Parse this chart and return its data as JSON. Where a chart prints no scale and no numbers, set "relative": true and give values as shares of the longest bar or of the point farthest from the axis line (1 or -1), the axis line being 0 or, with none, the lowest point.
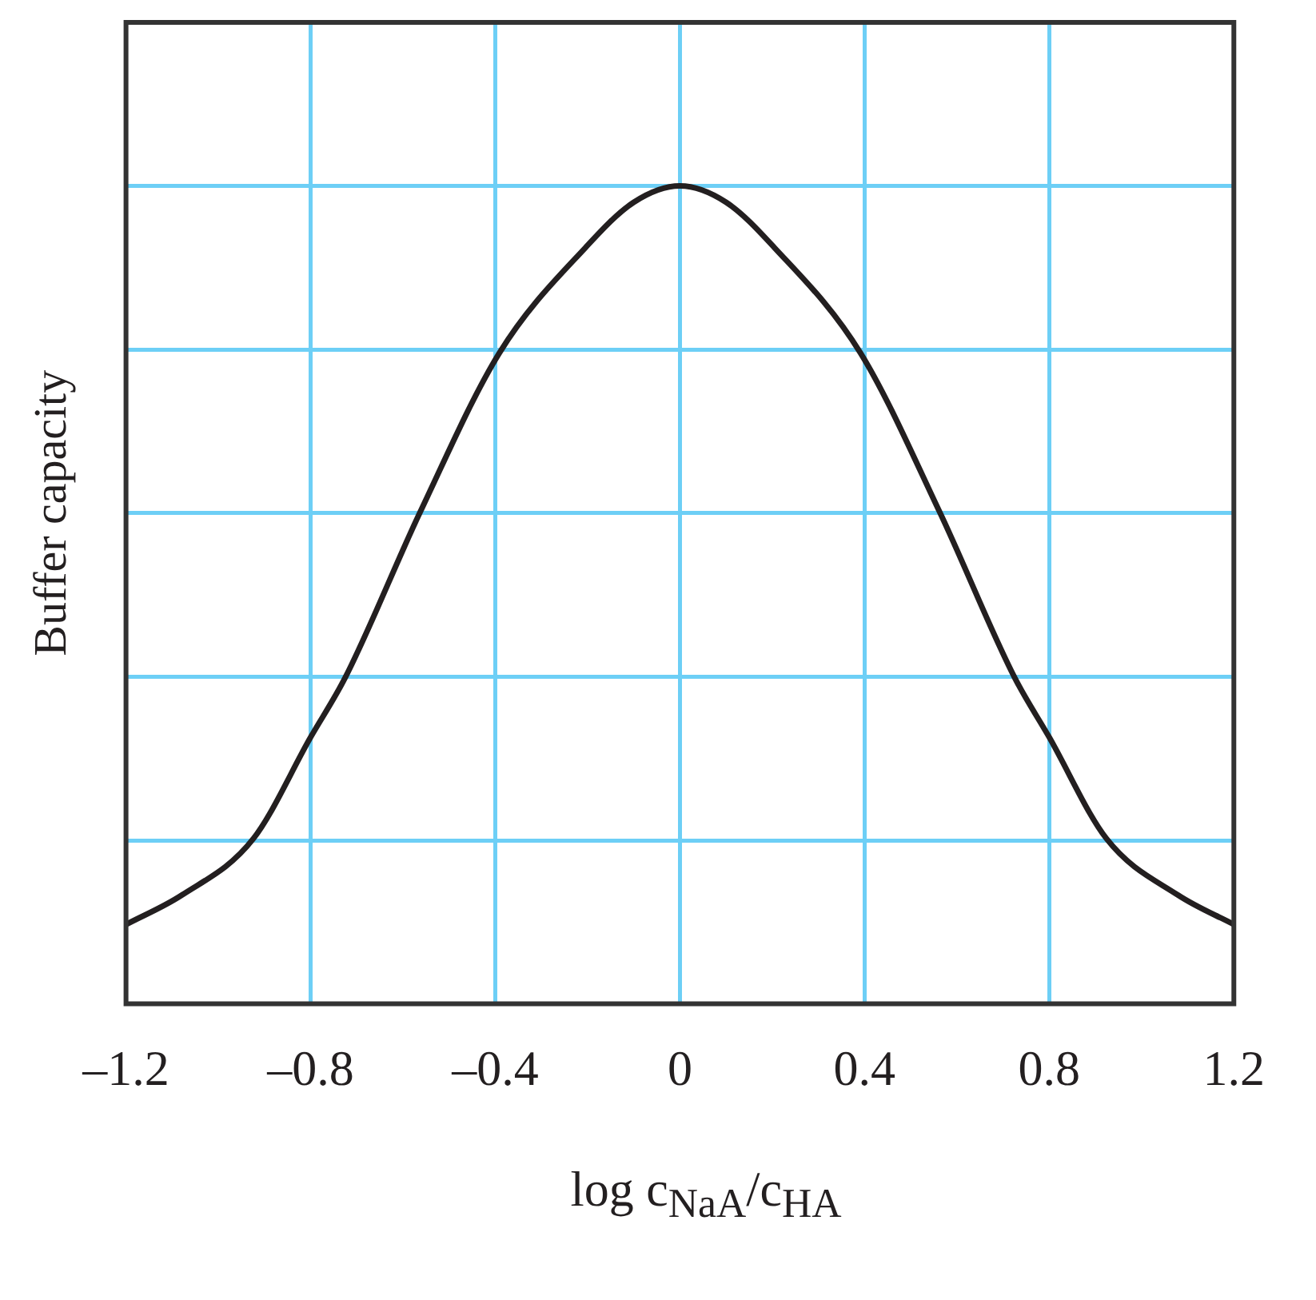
{
  "chart_data": {
    "type": "line",
    "xlabel": "log c$_{NaA}$/c$_{HA}$",
    "ylabel": "Buffer capacity",
    "relative": true,
    "x": [
      -1.2,
      -1.079,
      -0.924,
      -0.8,
      -0.725,
      -0.563,
      -0.391,
      -0.204,
      -0.1,
      0,
      0.1,
      0.204,
      0.391,
      0.563,
      0.725,
      0.8,
      0.924,
      1.079,
      1.2
    ],
    "series": [
      {
        "color": "#231f20",
        "values": [
          0.097,
          0.133,
          0.202,
          0.326,
          0.399,
          0.601,
          0.796,
          0.925,
          0.98,
          1,
          0.98,
          0.925,
          0.796,
          0.601,
          0.399,
          0.326,
          0.202,
          0.133,
          0.097
        ]
      }
    ],
    "xlim": [
      -1.2,
      1.2
    ],
    "xticks": [
      {
        "value": -1.2,
        "label": "–1.2"
      },
      {
        "value": -0.8,
        "label": "–0.8"
      },
      {
        "value": -0.4,
        "label": "–0.4"
      },
      0,
      0.4,
      0.8,
      1.2
    ],
    "grid": true,
    "legend": false,
    "marker": "none",
    "line_style": "solid"
  }
}
